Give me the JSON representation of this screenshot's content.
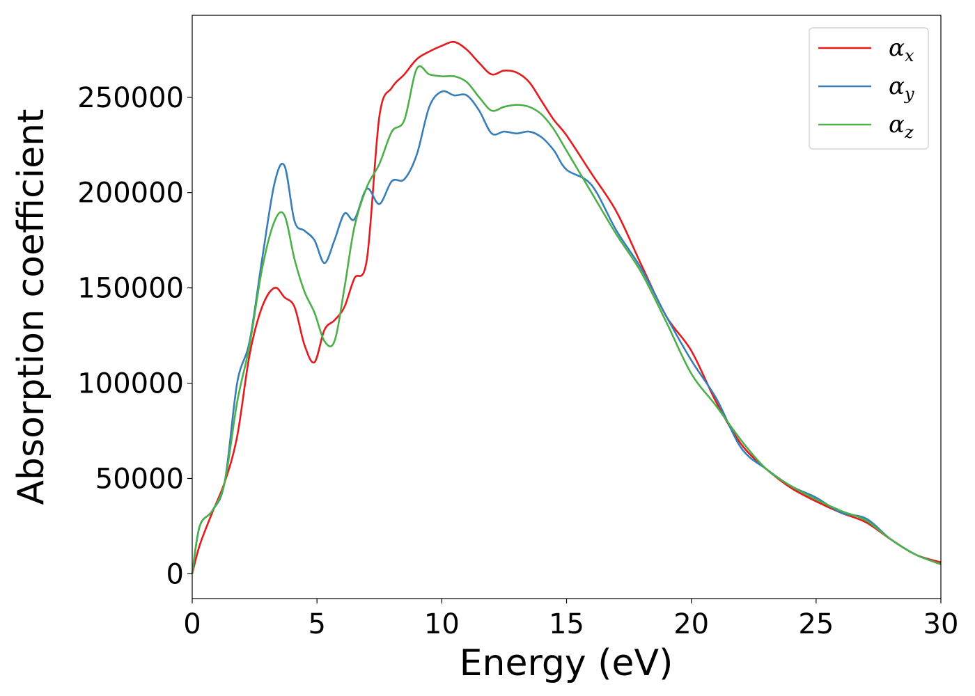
{
  "chart_data": {
    "type": "line",
    "xlabel": "Energy (eV)",
    "ylabel": "Absorption coefficient",
    "xlim": [
      0,
      30
    ],
    "ylim": [
      -13000,
      293000
    ],
    "xticks": [
      "0",
      "5",
      "10",
      "15",
      "20",
      "25",
      "30"
    ],
    "xtick_values": [
      0,
      5,
      10,
      15,
      20,
      25,
      30
    ],
    "yticks": [
      "0",
      "50000",
      "100000",
      "150000",
      "200000",
      "250000"
    ],
    "ytick_values": [
      0,
      50000,
      100000,
      150000,
      200000,
      250000
    ],
    "grid": false,
    "legend_position": "top-right",
    "series": [
      {
        "name": "α_x",
        "name_base": "α",
        "name_sub": "x",
        "color": "#e41a1c",
        "x": [
          0,
          0.3,
          0.8,
          1.3,
          1.8,
          2.3,
          2.8,
          3.3,
          3.7,
          4.1,
          4.5,
          4.9,
          5.3,
          5.7,
          6.1,
          6.5,
          7.0,
          7.5,
          8.0,
          8.5,
          9.0,
          9.5,
          10.0,
          10.5,
          11.0,
          11.5,
          12.0,
          12.5,
          13.0,
          13.5,
          14.0,
          14.5,
          15.0,
          16.0,
          17.0,
          18.0,
          19.0,
          20.0,
          21.0,
          22.0,
          23.0,
          24.0,
          25.0,
          26.0,
          27.0,
          28.0,
          29.0,
          30.0
        ],
        "values": [
          0,
          15000,
          32000,
          48000,
          72000,
          115000,
          140000,
          150000,
          145000,
          140000,
          120000,
          111000,
          128000,
          133000,
          140000,
          155000,
          165000,
          240000,
          255000,
          262000,
          270000,
          274000,
          277000,
          279000,
          275000,
          268000,
          262000,
          264000,
          263000,
          258000,
          248000,
          238000,
          230000,
          210000,
          190000,
          162000,
          135000,
          117000,
          90000,
          68000,
          55000,
          45000,
          38000,
          32000,
          27000,
          18000,
          10000,
          6000
        ]
      },
      {
        "name": "α_y",
        "name_base": "α",
        "name_sub": "y",
        "color": "#377eb8",
        "x": [
          0,
          0.3,
          0.8,
          1.3,
          1.8,
          2.3,
          2.8,
          3.3,
          3.7,
          4.1,
          4.5,
          4.9,
          5.3,
          5.7,
          6.1,
          6.5,
          7.0,
          7.5,
          8.0,
          8.5,
          9.0,
          9.5,
          10.0,
          10.5,
          11.0,
          11.5,
          12.0,
          12.5,
          13.0,
          13.5,
          14.0,
          14.5,
          15.0,
          16.0,
          17.0,
          18.0,
          19.0,
          20.0,
          21.0,
          22.0,
          23.0,
          24.0,
          25.0,
          26.0,
          27.0,
          28.0,
          29.0,
          30.0
        ],
        "values": [
          0,
          25000,
          33000,
          48000,
          100000,
          122000,
          165000,
          205000,
          214000,
          185000,
          180000,
          175000,
          163000,
          175000,
          189000,
          186000,
          202000,
          194000,
          206000,
          207000,
          220000,
          245000,
          253000,
          251000,
          251000,
          243000,
          231000,
          232000,
          231000,
          232000,
          229000,
          222000,
          212000,
          204000,
          180000,
          160000,
          135000,
          112000,
          92000,
          66000,
          55000,
          46000,
          40000,
          32000,
          29000,
          18000,
          10000,
          5000
        ]
      },
      {
        "name": "α_z",
        "name_base": "α",
        "name_sub": "z",
        "color": "#4daf4a",
        "x": [
          0,
          0.3,
          0.8,
          1.3,
          1.8,
          2.3,
          2.8,
          3.3,
          3.7,
          4.1,
          4.5,
          4.9,
          5.3,
          5.7,
          6.1,
          6.5,
          7.0,
          7.5,
          8.0,
          8.5,
          9.0,
          9.5,
          10.0,
          10.5,
          11.0,
          11.5,
          12.0,
          12.5,
          13.0,
          13.5,
          14.0,
          14.5,
          15.0,
          16.0,
          17.0,
          18.0,
          19.0,
          20.0,
          21.0,
          22.0,
          23.0,
          24.0,
          25.0,
          26.0,
          27.0,
          28.0,
          29.0,
          30.0
        ],
        "values": [
          0,
          25000,
          33000,
          48000,
          90000,
          120000,
          160000,
          185000,
          188000,
          165000,
          148000,
          137000,
          122000,
          122000,
          150000,
          182000,
          203000,
          215000,
          232000,
          238000,
          265000,
          262000,
          261000,
          261000,
          258000,
          250000,
          243000,
          245000,
          246000,
          245000,
          241000,
          233000,
          222000,
          200000,
          178000,
          158000,
          132000,
          105000,
          88000,
          70000,
          55000,
          46000,
          39000,
          33000,
          28000,
          18000,
          10000,
          5000
        ]
      }
    ]
  }
}
